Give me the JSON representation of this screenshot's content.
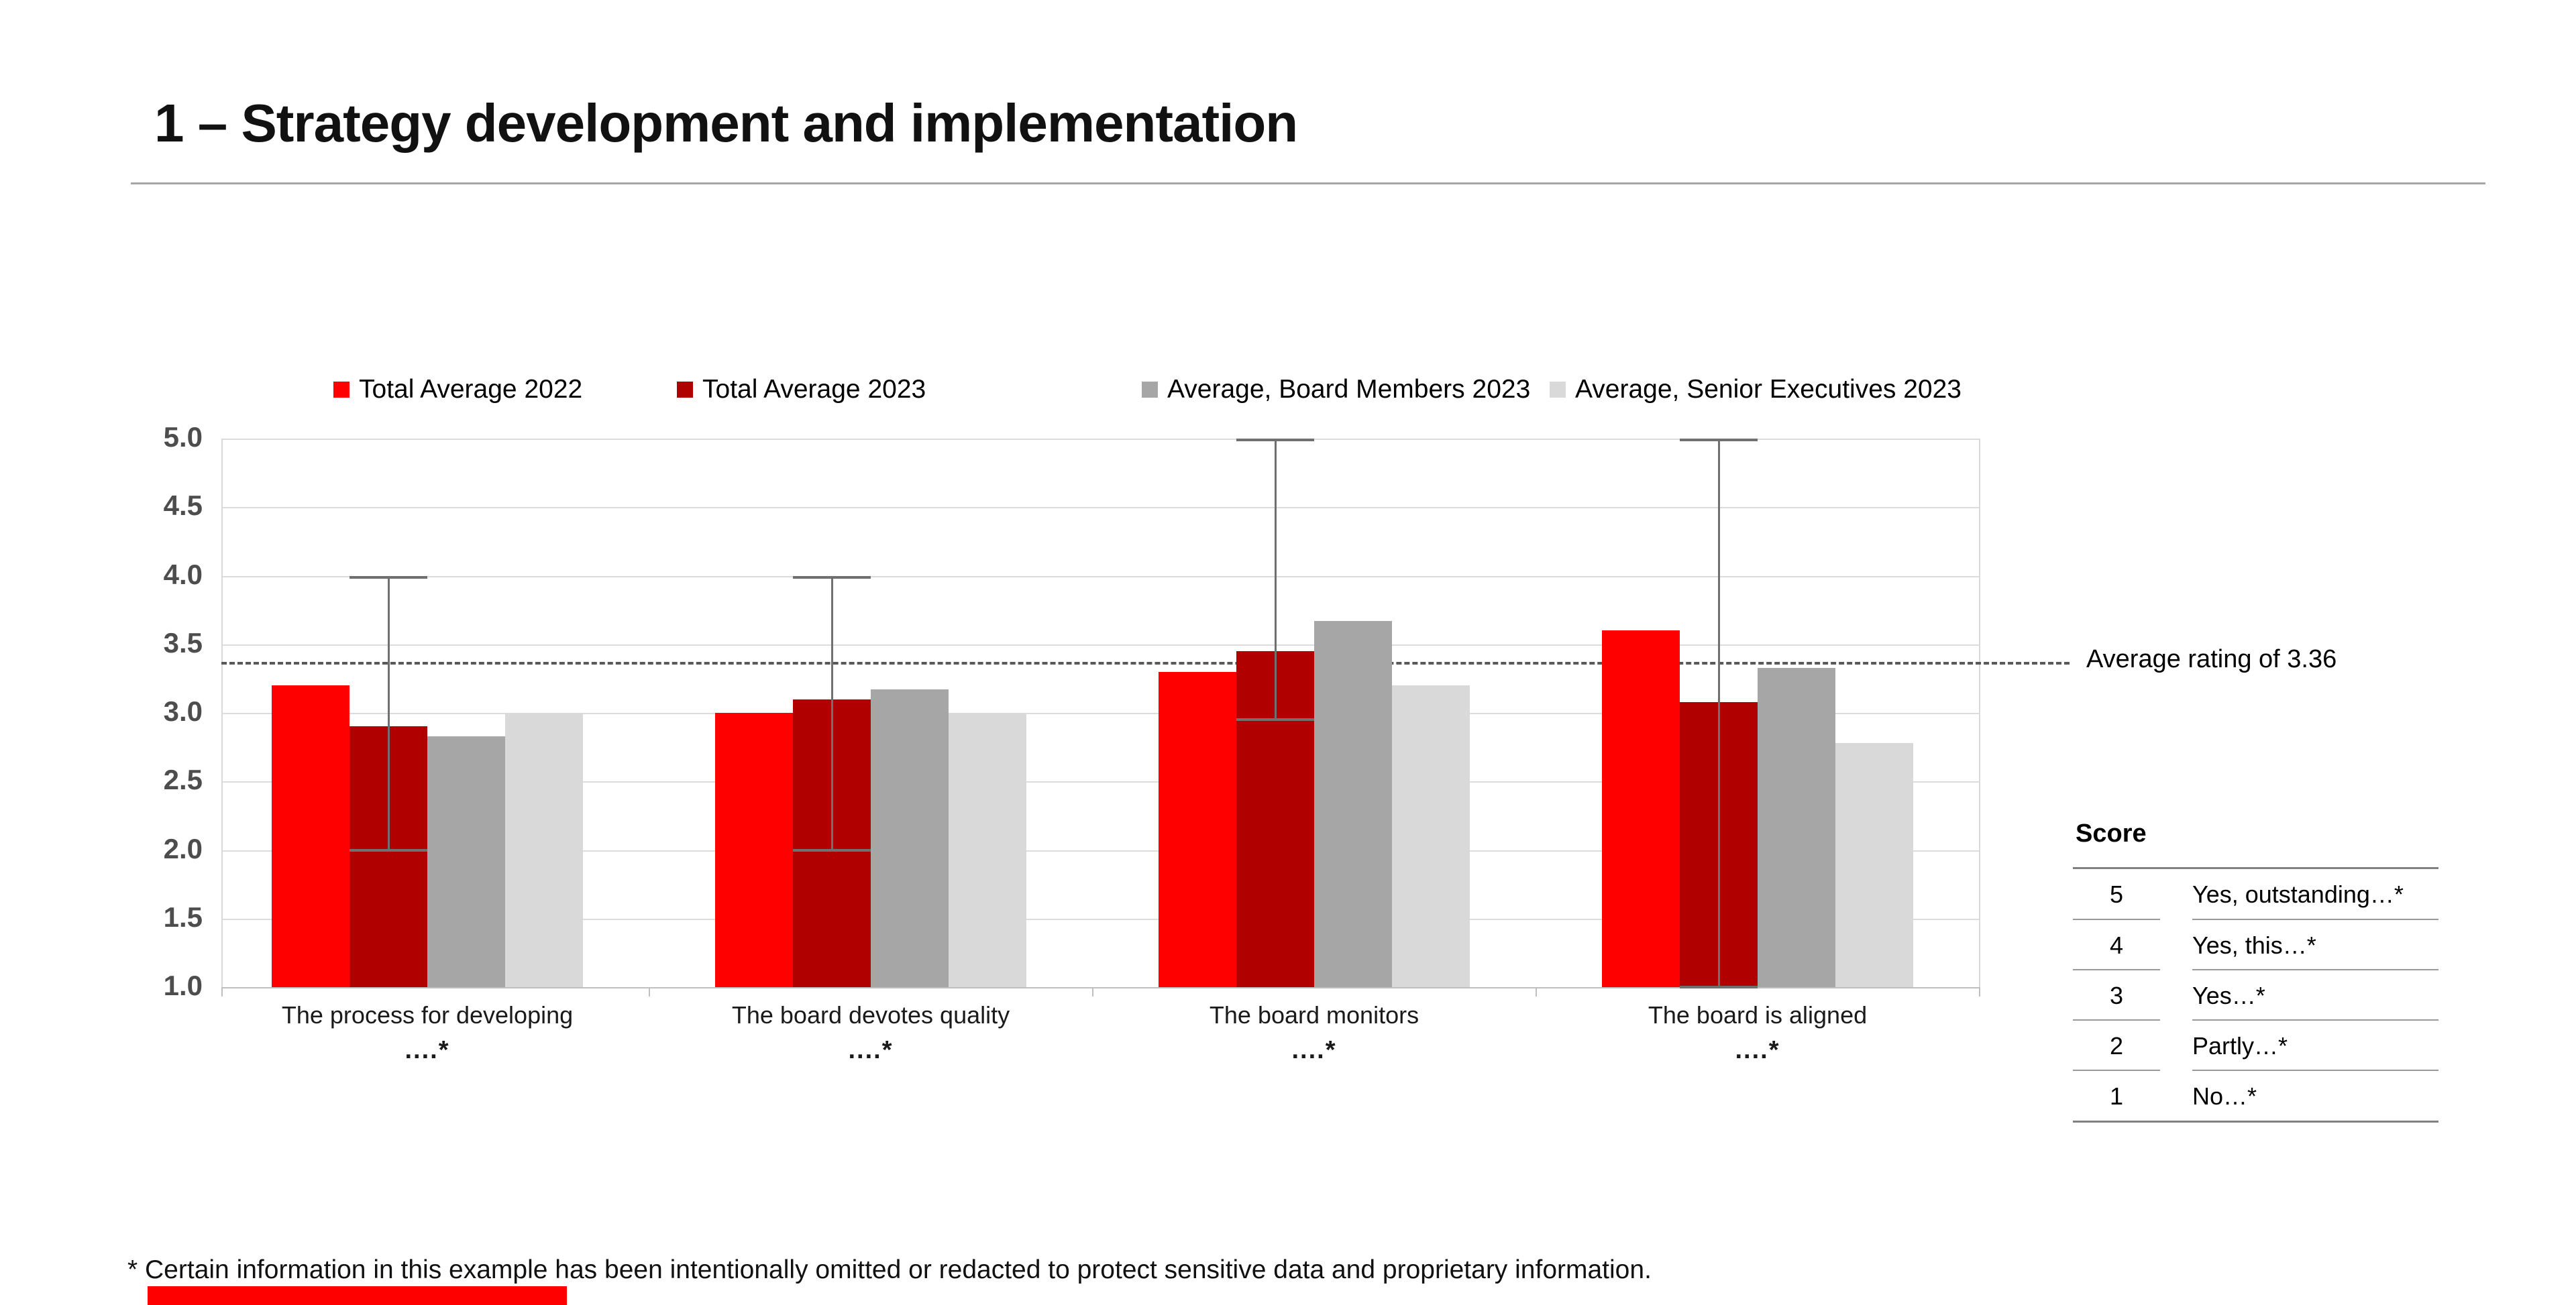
{
  "header": {
    "title": "1 – Strategy development and implementation"
  },
  "legend": [
    {
      "label": "Total Average 2022",
      "color": "#ff0000"
    },
    {
      "label": "Total Average 2023",
      "color": "#b00000"
    },
    {
      "label": "Average, Board Members 2023",
      "color": "#a6a6a6"
    },
    {
      "label": "Average, Senior Executives 2023",
      "color": "#d9d9d9"
    }
  ],
  "chart_data": {
    "type": "bar",
    "title": "",
    "xlabel": "",
    "ylabel": "",
    "ylim": [
      1.0,
      5.0
    ],
    "grid": true,
    "legend_position": "top",
    "yticks": [
      "5.0",
      "4.5",
      "4.0",
      "3.5",
      "3.0",
      "2.5",
      "2.0",
      "1.5",
      "1.0"
    ],
    "categories": [
      {
        "line1": "The process for developing",
        "line2": "....*"
      },
      {
        "line1": "The board devotes quality",
        "line2": "....*"
      },
      {
        "line1": "The board monitors",
        "line2": "....*"
      },
      {
        "line1": "The board is aligned",
        "line2": "....*"
      }
    ],
    "series": [
      {
        "name": "Total Average 2022",
        "color": "#ff0000",
        "values": [
          3.2,
          3.0,
          3.3,
          3.6
        ]
      },
      {
        "name": "Total Average 2023",
        "color": "#b00000",
        "values": [
          2.9,
          3.1,
          3.45,
          3.08
        ]
      },
      {
        "name": "Average, Board Members 2023",
        "color": "#a6a6a6",
        "values": [
          2.83,
          3.17,
          3.67,
          3.33
        ]
      },
      {
        "name": "Average, Senior Executives 2023",
        "color": "#d9d9d9",
        "values": [
          3.0,
          3.0,
          3.2,
          2.78
        ]
      }
    ],
    "error_bars": {
      "on_series": "Total Average 2023",
      "ranges": [
        [
          2.0,
          4.0
        ],
        [
          2.0,
          4.0
        ],
        [
          2.95,
          5.0
        ],
        [
          1.0,
          5.0
        ]
      ],
      "color": "#707070"
    },
    "average_line": {
      "value": 3.36,
      "label": "Average rating of 3.36",
      "style": "dashed",
      "color": "#595959"
    }
  },
  "score_table": {
    "header": "Score",
    "rows": [
      {
        "score": "5",
        "label": "Yes, outstanding…*"
      },
      {
        "score": "4",
        "label": "Yes, this…*"
      },
      {
        "score": "3",
        "label": "Yes…*"
      },
      {
        "score": "2",
        "label": "Partly…*"
      },
      {
        "score": "1",
        "label": "No…*"
      }
    ]
  },
  "footnote": "* Certain information in this example has been intentionally omitted or redacted to protect sensitive data and proprietary information.",
  "accent_bar_color": "#ff0000"
}
